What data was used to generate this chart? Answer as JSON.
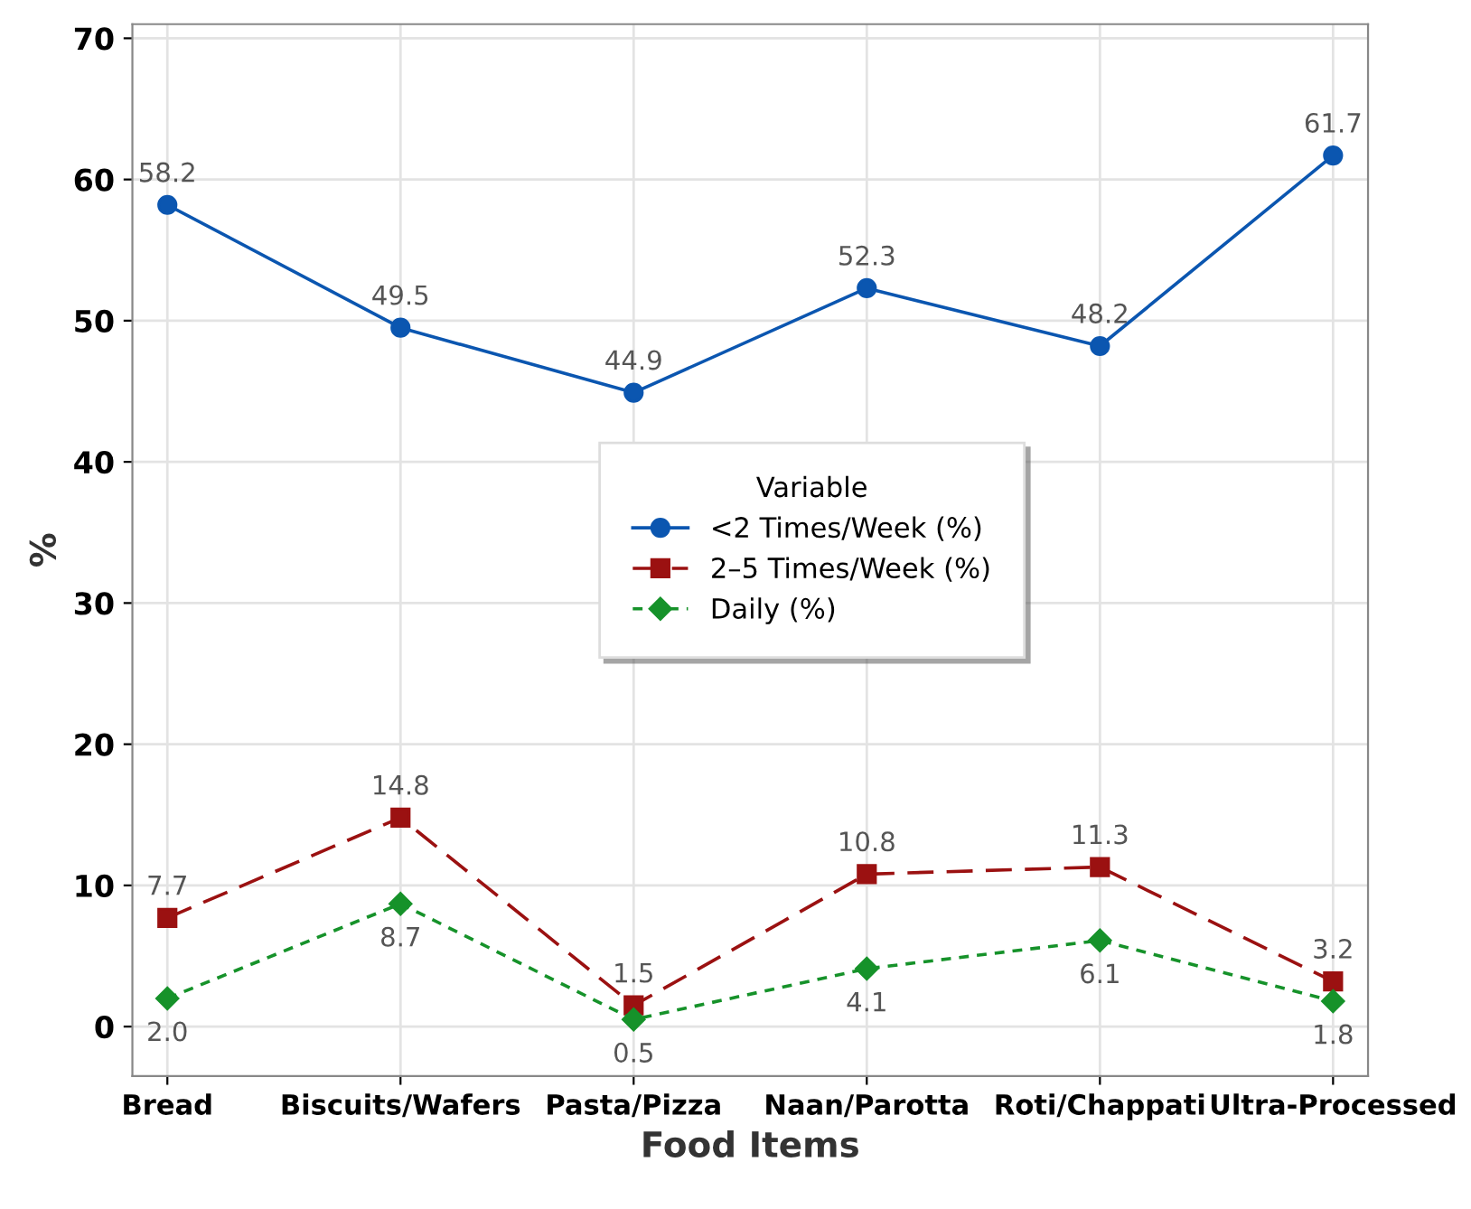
{
  "chart_data": {
    "type": "line",
    "xlabel": "Food Items",
    "ylabel": "%",
    "categories": [
      "Bread",
      "Biscuits/Wafers",
      "Pasta/Pizza",
      "Naan/Parotta",
      "Roti/Chappati",
      "Ultra-Processed"
    ],
    "series": [
      {
        "name": "<2 Times/Week (%)",
        "color": "#0b56b0",
        "marker": "circle",
        "line_style": "solid",
        "values": [
          58.2,
          49.5,
          44.9,
          52.3,
          48.2,
          61.7
        ]
      },
      {
        "name": "2–5 Times/Week (%)",
        "color": "#9b1111",
        "marker": "square",
        "line_style": "dashed",
        "values": [
          7.7,
          14.8,
          1.5,
          10.8,
          11.3,
          3.2
        ]
      },
      {
        "name": "Daily (%)",
        "color": "#16922a",
        "marker": "diamond",
        "line_style": "dotted",
        "values": [
          2.0,
          8.7,
          0.5,
          4.1,
          6.1,
          1.8
        ],
        "value_labels": [
          "2.0",
          "8.7",
          "0.5",
          "4.1",
          "6.1",
          "1.8"
        ]
      }
    ],
    "ylim": [
      -3.5,
      71
    ],
    "yticks": [
      0,
      10,
      20,
      30,
      40,
      50,
      60,
      70
    ],
    "grid": true,
    "legend": "center",
    "legend_title": "Variable",
    "data_labels": true
  }
}
